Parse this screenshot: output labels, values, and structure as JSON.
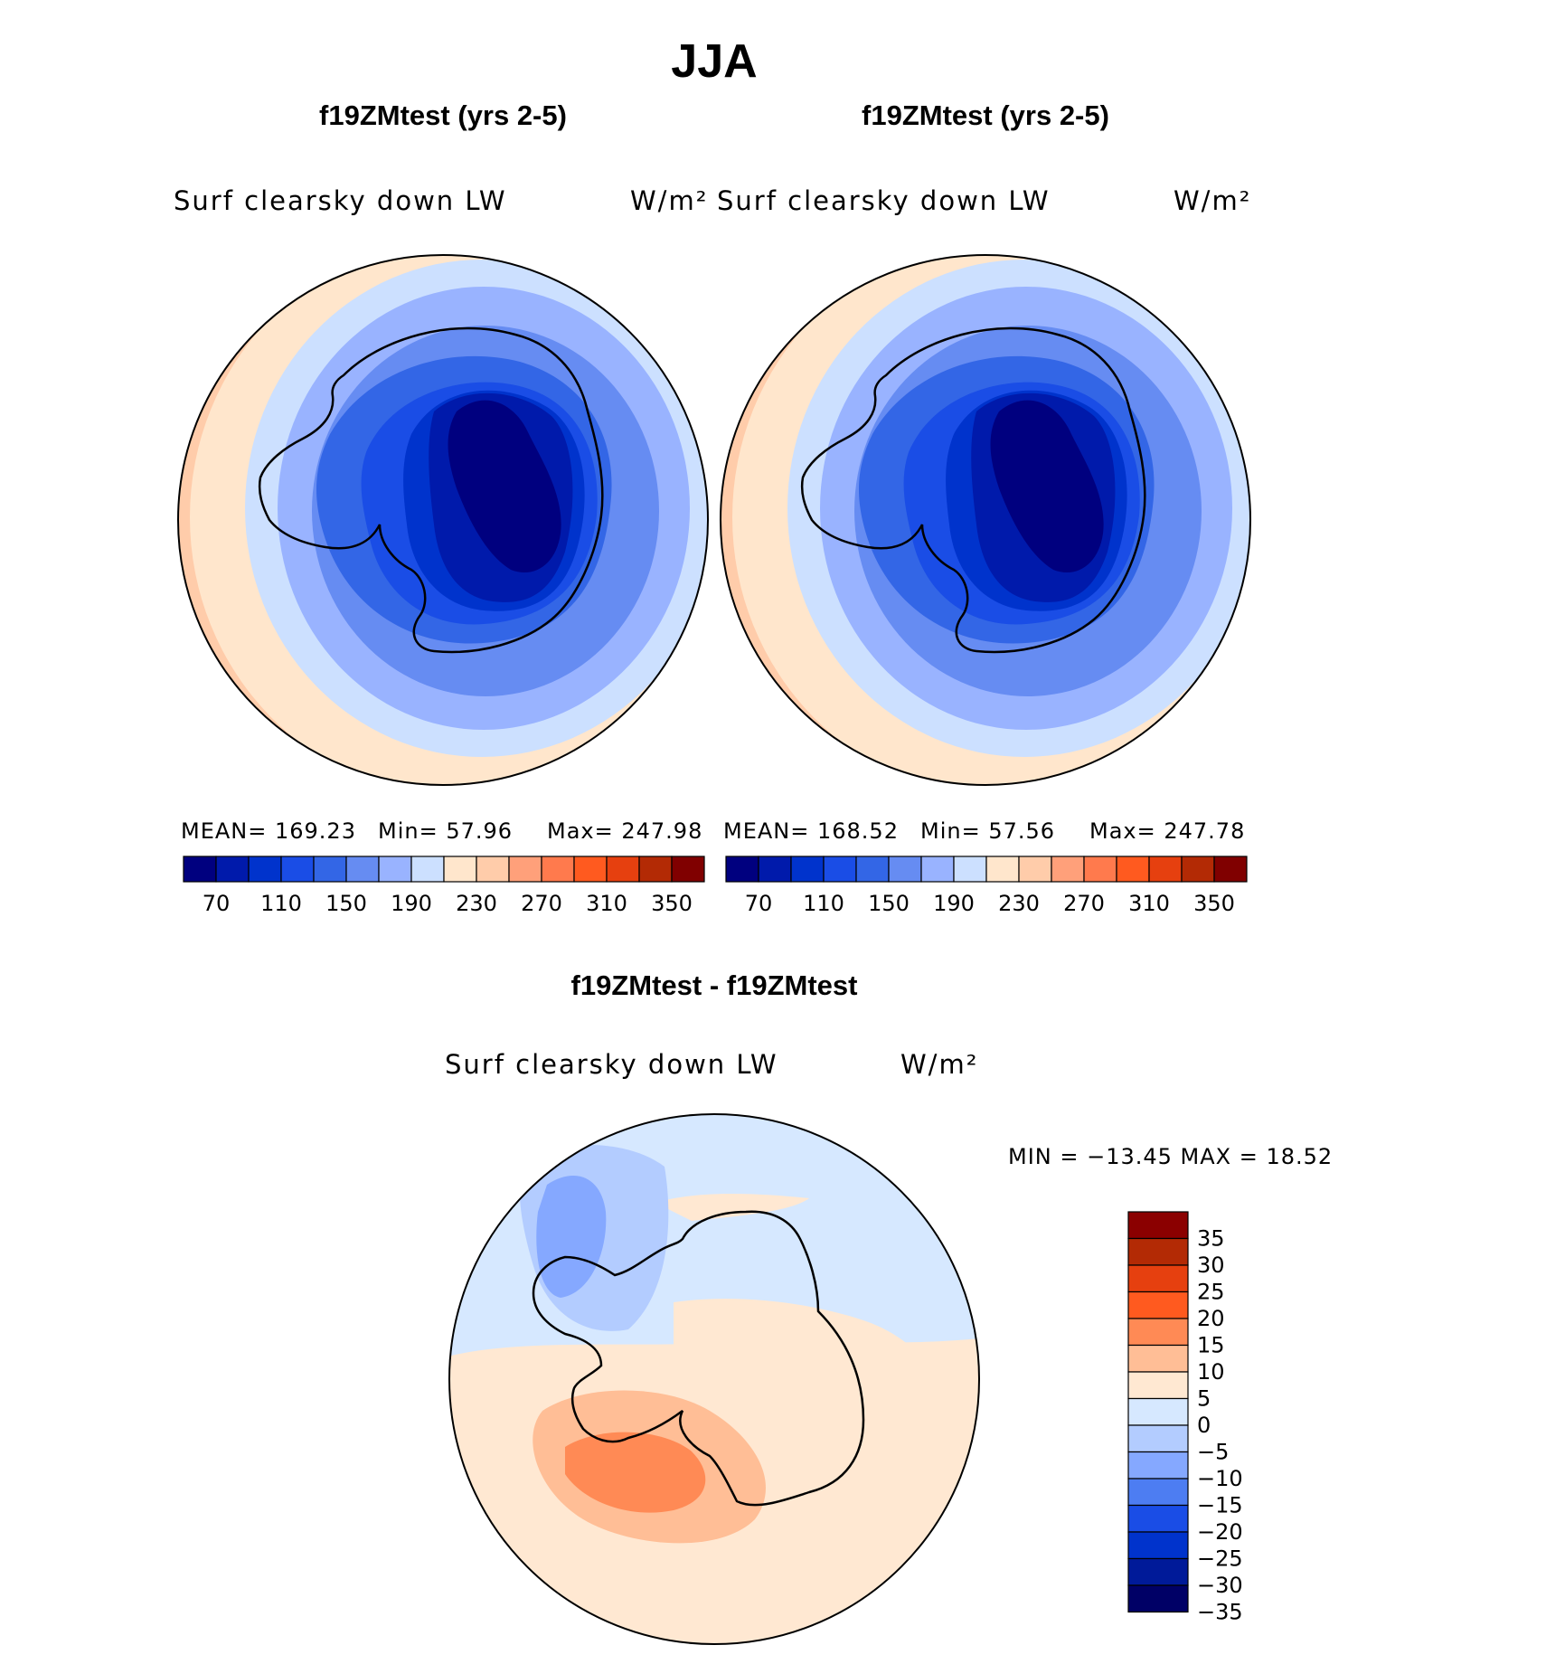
{
  "figure": {
    "title": "JJA",
    "diff_title": "f19ZMtest - f19ZMtest",
    "var_label": "Surf clearsky down LW",
    "unit_label": "W/m²"
  },
  "panels": [
    {
      "title": "f19ZMtest (yrs 2-5)",
      "mean_text": "MEAN= 169.23",
      "min_text": "Min=   57.96",
      "max_text": "Max= 247.98"
    },
    {
      "title": "f19ZMtest (yrs 2-5)",
      "mean_text": "MEAN= 168.52",
      "min_text": "Min=   57.56",
      "max_text": "Max= 247.78"
    }
  ],
  "diff_panel": {
    "minmax_text": "MIN = −13.45  MAX =   18.52"
  },
  "colorbar_abs": {
    "colors": [
      "#00007f",
      "#001aab",
      "#0033cc",
      "#1a4de6",
      "#3366e6",
      "#668cf2",
      "#99b3ff",
      "#cce0ff",
      "#ffe6cc",
      "#ffccaa",
      "#ffa07a",
      "#ff7a4d",
      "#ff5a1f",
      "#e6400f",
      "#b32a05",
      "#800000"
    ],
    "tick_labels": [
      "70",
      "110",
      "150",
      "190",
      "230",
      "270",
      "310",
      "350"
    ]
  },
  "colorbar_diff": {
    "colors": [
      "#000066",
      "#001a99",
      "#0033cc",
      "#1a4de6",
      "#4d7df2",
      "#85a8ff",
      "#b3ccff",
      "#d6e8ff",
      "#ffe8d2",
      "#ffbe96",
      "#ff8a55",
      "#ff5a1f",
      "#e6400f",
      "#b32a05",
      "#8b0000"
    ],
    "tick_labels": [
      "35",
      "30",
      "25",
      "20",
      "15",
      "10",
      "5",
      "0",
      "−5",
      "−10",
      "−15",
      "−20",
      "−25",
      "−30",
      "−35"
    ]
  }
}
